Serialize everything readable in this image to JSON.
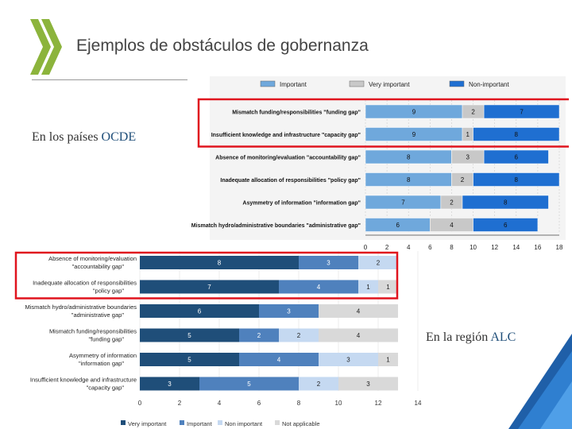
{
  "page": {
    "title": "Ejemplos de obstáculos de gobernanza",
    "oecd_prefix": "En los países ",
    "oecd_highlight": "OCDE",
    "alc_prefix": "En  la región ",
    "alc_highlight": "ALC",
    "colors": {
      "logo_green": "#8cb43c",
      "accent_red": "#e0141e",
      "dark_blue": "#1f4e79",
      "corner_blue": "#1f5fa8"
    }
  },
  "chart_data": [
    {
      "type": "bar",
      "orientation": "horizontal",
      "stacked": true,
      "categories": [
        "Mismatch funding/responsibilities \"funding gap\"",
        "Insufficient knowledge and infrastructure \"capacity gap\"",
        "Absence of monitoring/evaluation \"accountability gap\"",
        "Inadequate allocation of responsibilities \"policy gap\"",
        "Asymmetry of information \"information gap\"",
        "Mismatch hydro/administrative boundaries \"administrative gap\""
      ],
      "series": [
        {
          "name": "Important",
          "color": "#6fa8dc",
          "values": [
            9,
            9,
            8,
            8,
            7,
            6
          ]
        },
        {
          "name": "Very important",
          "color": "#c8c8c8",
          "values": [
            2,
            1,
            3,
            2,
            2,
            4
          ]
        },
        {
          "name": "Non-important",
          "color": "#1f6fd1",
          "values": [
            7,
            8,
            6,
            8,
            8,
            6
          ]
        }
      ],
      "xlim": [
        0,
        18
      ],
      "xticks": [
        0,
        2,
        4,
        6,
        8,
        10,
        12,
        14,
        16,
        18
      ],
      "legend": "top",
      "highlighted_rows": [
        0,
        1
      ]
    },
    {
      "type": "bar",
      "orientation": "horizontal",
      "stacked": true,
      "categories": [
        "Absence of monitoring/evaluation \"accountability gap\"",
        "Inadequate allocation of responsibilities \"policy gap\"",
        "Mismatch hydro/administrative boundaries \"administrative gap\"",
        "Mismatch funding/responsibilities \"funding gap\"",
        "Asymmetry of information \"information gap\"",
        "Insufficient knowledge and infrastructure \"capacity gap\""
      ],
      "series": [
        {
          "name": "Very important",
          "color": "#1f4e79",
          "values": [
            8,
            7,
            6,
            5,
            5,
            3
          ]
        },
        {
          "name": "Important",
          "color": "#4f81bd",
          "values": [
            3,
            4,
            3,
            2,
            4,
            5
          ]
        },
        {
          "name": "Non important",
          "color": "#c5d9f1",
          "values": [
            2,
            1,
            0,
            2,
            3,
            2
          ]
        },
        {
          "name": "Not applicable",
          "color": "#d9d9d9",
          "values": [
            0,
            1,
            4,
            4,
            1,
            3
          ]
        }
      ],
      "xlim": [
        0,
        14
      ],
      "xticks": [
        0,
        2,
        4,
        6,
        8,
        10,
        12,
        14
      ],
      "legend": "bottom",
      "highlighted_rows": [
        0,
        1
      ]
    }
  ]
}
